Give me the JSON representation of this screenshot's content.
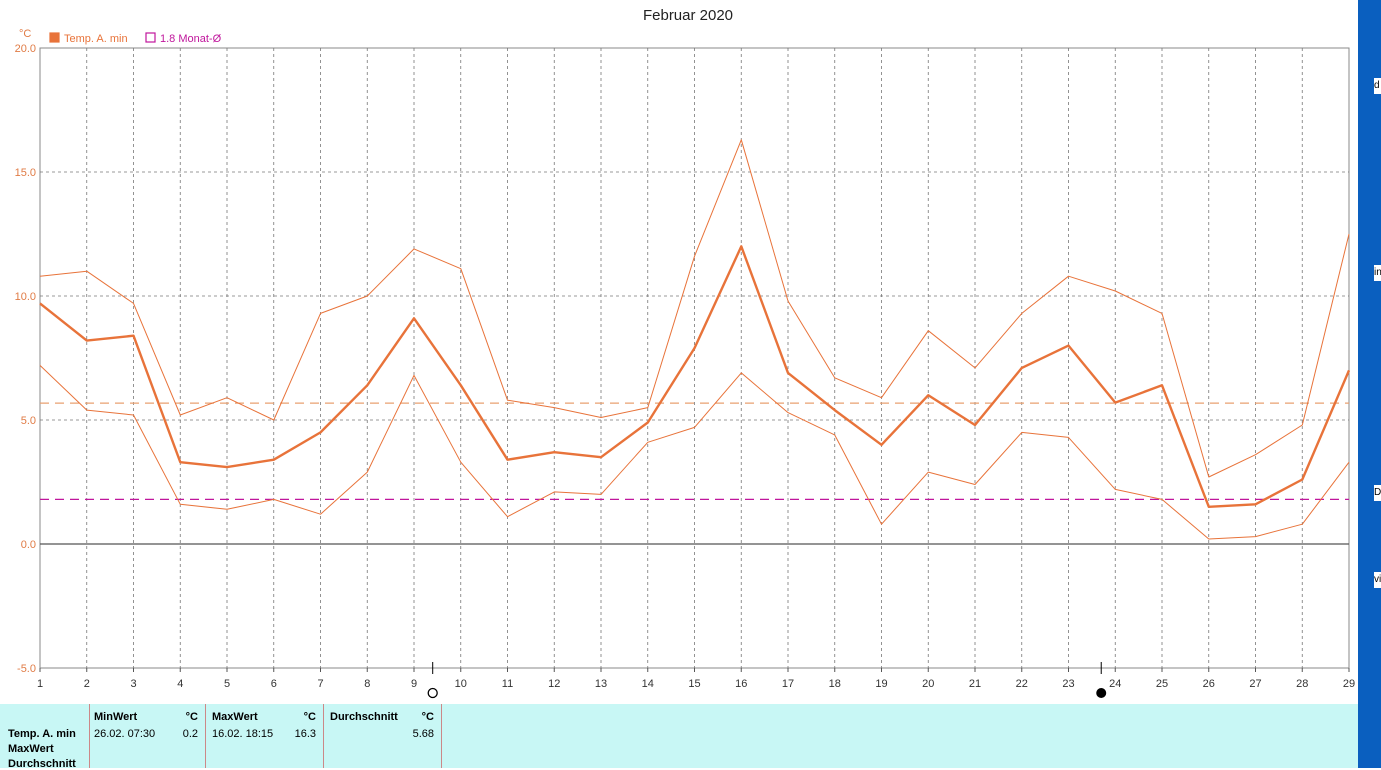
{
  "chart_data": {
    "type": "line",
    "title": "Februar 2020",
    "ylabel": "°C",
    "ylim": [
      -5,
      20
    ],
    "xlim": [
      1,
      29
    ],
    "x": [
      1,
      2,
      3,
      4,
      5,
      6,
      7,
      8,
      9,
      10,
      11,
      12,
      13,
      14,
      15,
      16,
      17,
      18,
      19,
      20,
      21,
      22,
      23,
      24,
      25,
      26,
      27,
      28,
      29
    ],
    "yticks": [
      "20.0",
      "15.0",
      "10.0",
      "5.0",
      "0.0",
      "-5.0"
    ],
    "xticks": [
      "1",
      "2",
      "3",
      "4",
      "5",
      "6",
      "7",
      "8",
      "9",
      "10",
      "11",
      "12",
      "13",
      "14",
      "15",
      "16",
      "17",
      "18",
      "19",
      "20",
      "21",
      "22",
      "23",
      "24",
      "25",
      "26",
      "27",
      "28",
      "29"
    ],
    "grid": true,
    "legend": [
      {
        "name": "Temp. A. min",
        "color": "#e8733a"
      },
      {
        "name": "1.8 Monat-Ø",
        "color": "#c0169c"
      }
    ],
    "series": [
      {
        "name": "Temp. A. min",
        "color": "#e8733a",
        "values": [
          9.7,
          8.2,
          8.4,
          3.3,
          3.1,
          3.4,
          4.5,
          6.4,
          9.1,
          6.4,
          3.4,
          3.7,
          3.5,
          4.9,
          7.9,
          12.0,
          6.9,
          5.4,
          4.0,
          6.0,
          4.8,
          7.1,
          8.0,
          5.7,
          6.4,
          1.5,
          1.6,
          2.6,
          7.0
        ]
      },
      {
        "values": [
          10.8,
          11.0,
          9.7,
          5.2,
          5.9,
          5.0,
          9.3,
          10.0,
          11.9,
          11.1,
          5.8,
          5.5,
          5.1,
          5.5,
          11.6,
          16.3,
          9.8,
          6.7,
          5.9,
          8.6,
          7.1,
          9.3,
          10.8,
          10.2,
          9.3,
          2.7,
          3.6,
          4.8,
          12.5
        ]
      },
      {
        "values": [
          7.2,
          5.4,
          5.2,
          1.6,
          1.4,
          1.8,
          1.2,
          2.9,
          6.8,
          3.3,
          1.1,
          2.1,
          2.0,
          4.1,
          4.7,
          6.9,
          5.3,
          4.4,
          0.8,
          2.9,
          2.4,
          4.5,
          4.3,
          2.2,
          1.8,
          0.2,
          0.3,
          0.8,
          3.3
        ]
      }
    ],
    "hlines": [
      {
        "value": 5.68,
        "color": "#e8a070",
        "style": "dashed"
      },
      {
        "name": "1.8 Monat-Ø",
        "value": 1.8,
        "color": "#c0169c",
        "style": "dashed"
      }
    ],
    "moon_markers": [
      {
        "x": 9.4,
        "phase": "full-moon"
      },
      {
        "x": 23.7,
        "phase": "new-moon"
      }
    ]
  },
  "colors": {
    "series_main": "#e8733a",
    "monthly_avg": "#c0169c",
    "panel_bg": "#c8f7f5",
    "side_strip": "#0a5fbf"
  },
  "stats": {
    "row_labels": [
      "Temp. A. min",
      "MaxWert",
      "Durchschnitt"
    ],
    "min": {
      "header": "MinWert",
      "unit": "°C",
      "date": "26.02.  07:30",
      "value": "0.2"
    },
    "max": {
      "header": "MaxWert",
      "unit": "°C",
      "date": "16.02.  18:15",
      "value": "16.3"
    },
    "avg": {
      "header": "Durchschnitt",
      "unit": "°C",
      "value": "5.68"
    }
  },
  "side_strip_chars": [
    "d",
    "in",
    "D",
    "vi"
  ]
}
